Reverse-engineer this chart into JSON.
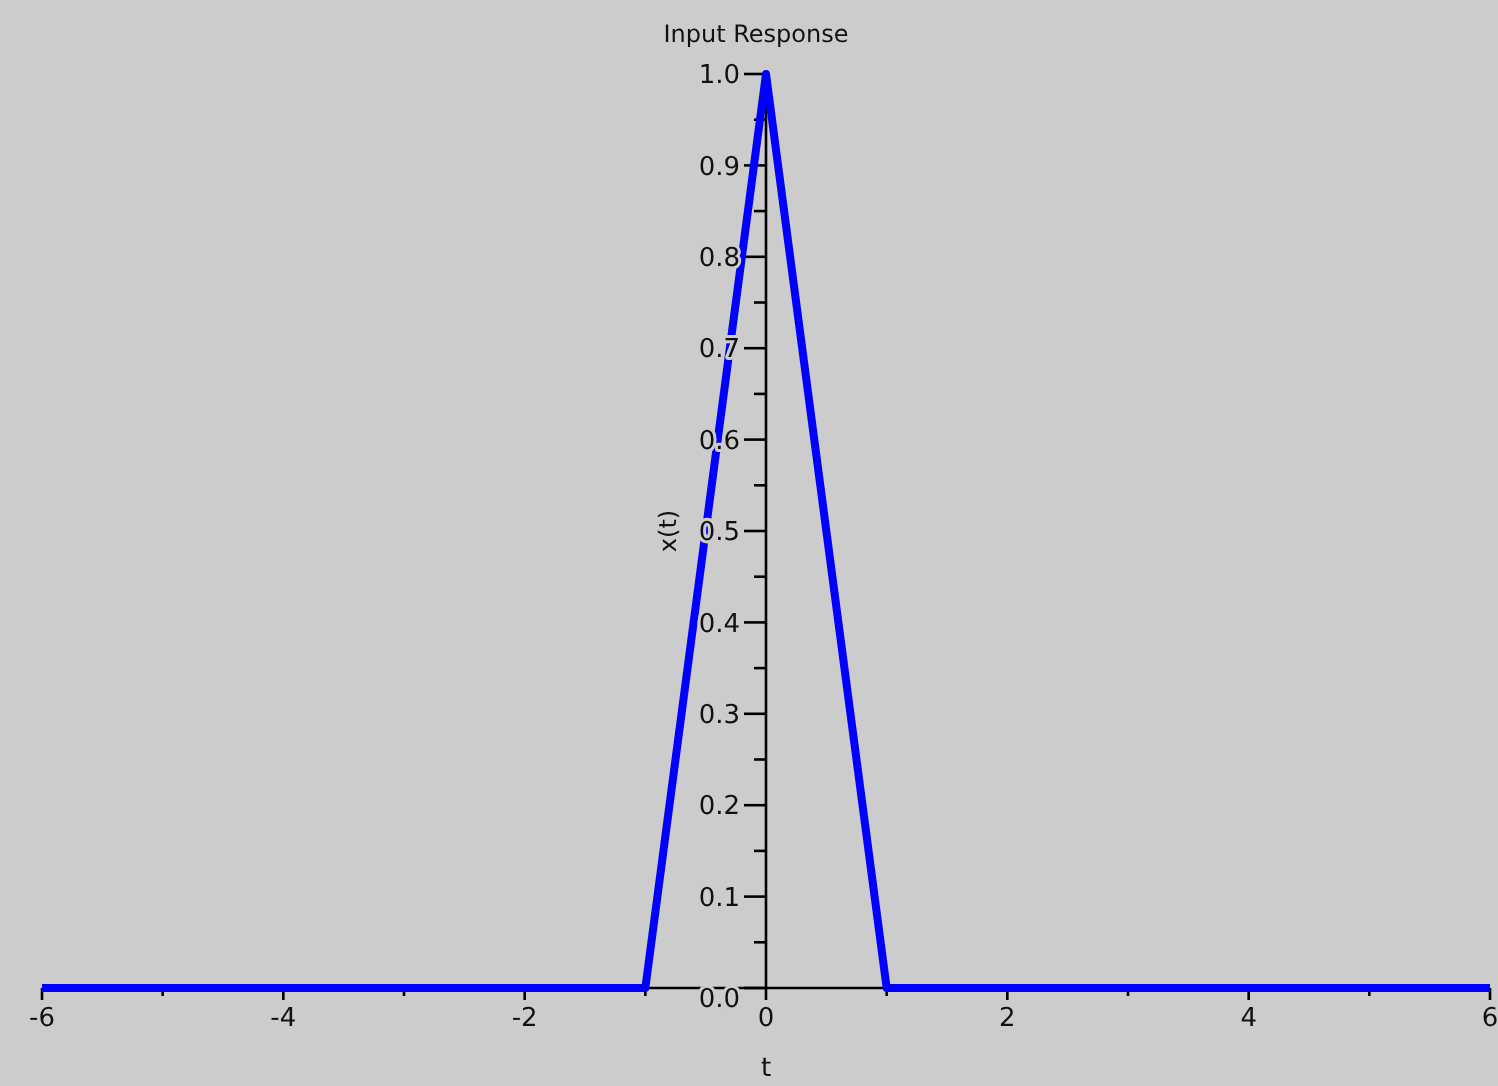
{
  "chart_data": {
    "type": "line",
    "title": "Input Response",
    "xlabel": "t",
    "ylabel": "x(t)",
    "x": [
      -6,
      -1,
      0,
      1,
      6
    ],
    "series": [
      {
        "color": "#0000ff",
        "values": [
          0,
          0,
          1,
          0,
          0
        ]
      }
    ],
    "xlim": [
      -6,
      6
    ],
    "ylim": [
      0,
      1
    ],
    "xticks": [
      -6,
      {
        "value": -5,
        "label": null
      },
      -4,
      {
        "value": -3,
        "label": null
      },
      -2,
      {
        "value": -1,
        "label": null
      },
      0,
      {
        "value": 1,
        "label": null
      },
      2,
      {
        "value": 3,
        "label": null
      },
      4,
      {
        "value": 5,
        "label": null
      },
      6
    ],
    "yticks": [
      {
        "value": 0,
        "label": "0.0"
      },
      {
        "value": 0.05,
        "label": null
      },
      0.1,
      {
        "value": 0.15,
        "label": null
      },
      0.2,
      {
        "value": 0.25,
        "label": null
      },
      0.3,
      {
        "value": 0.35,
        "label": null
      },
      0.4,
      {
        "value": 0.45,
        "label": null
      },
      0.5,
      {
        "value": 0.55,
        "label": null
      },
      0.6,
      {
        "value": 0.65,
        "label": null
      },
      0.7,
      {
        "value": 0.75,
        "label": null
      },
      0.8,
      {
        "value": 0.85,
        "label": null
      },
      0.9,
      {
        "value": 0.95,
        "label": null
      },
      {
        "value": 1,
        "label": "1.0"
      }
    ]
  }
}
